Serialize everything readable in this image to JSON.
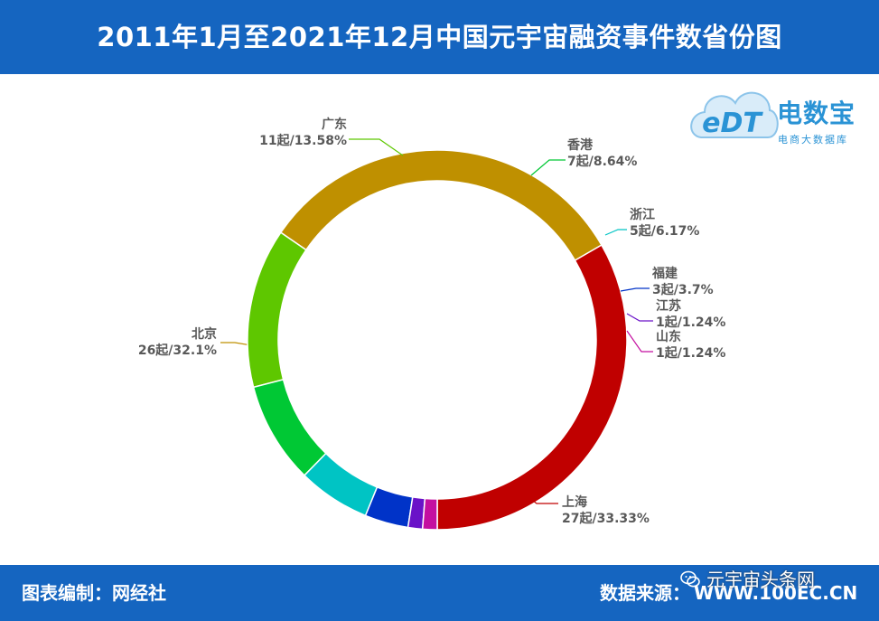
{
  "title": "2011年1月至2021年12月中国元宇宙融资事件数省份图",
  "footer": {
    "credit": "图表编制：网经社",
    "source_label": "数据来源：",
    "source_url": "WWW.100EC.CN",
    "watermark": "元宇宙头条网"
  },
  "logo": {
    "name": "电数宝",
    "subtitle": "电商大数据库",
    "mark": "eDT"
  },
  "chart_data": {
    "type": "pie",
    "donut": true,
    "unit_count": "起",
    "slices": [
      {
        "name": "上海",
        "value": 27,
        "percent": "33.33%",
        "count_label": "27起",
        "color": "#c00000"
      },
      {
        "name": "北京",
        "value": 26,
        "percent": "32.1%",
        "count_label": "26起",
        "color": "#bf9000"
      },
      {
        "name": "广东",
        "value": 11,
        "percent": "13.58%",
        "count_label": "11起",
        "color": "#5ec700"
      },
      {
        "name": "香港",
        "value": 7,
        "percent": "8.64%",
        "count_label": "7起",
        "color": "#00c834"
      },
      {
        "name": "浙江",
        "value": 5,
        "percent": "6.17%",
        "count_label": "5起",
        "color": "#00c4c4"
      },
      {
        "name": "福建",
        "value": 3,
        "percent": "3.7%",
        "count_label": "3起",
        "color": "#0033c8"
      },
      {
        "name": "江苏",
        "value": 1,
        "percent": "1.24%",
        "count_label": "1起",
        "color": "#6a12c8"
      },
      {
        "name": "山东",
        "value": 1,
        "percent": "1.24%",
        "count_label": "1起",
        "color": "#c40fa0"
      }
    ]
  }
}
